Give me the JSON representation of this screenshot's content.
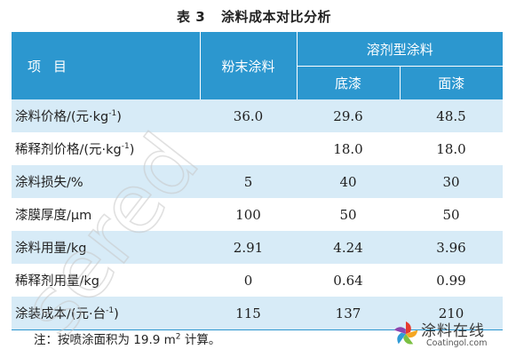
{
  "title": {
    "number": "表 3",
    "text": "涂料成本对比分析"
  },
  "table": {
    "header": {
      "item": "项目",
      "powder": "粉末涂料",
      "solvent": "溶剂型涂料",
      "primer": "底漆",
      "topcoat": "面漆"
    },
    "rows": [
      {
        "name": "涂料价格/(元·kg",
        "name_sup": "-1",
        "name_end": ")",
        "powder": "36.0",
        "primer": "29.6",
        "topcoat": "48.5"
      },
      {
        "name": "稀释剂价格/(元·kg",
        "name_sup": "-1",
        "name_end": ")",
        "powder": "",
        "primer": "18.0",
        "topcoat": "18.0"
      },
      {
        "name": "涂料损失/%",
        "name_sup": "",
        "name_end": "",
        "powder": "5",
        "primer": "40",
        "topcoat": "30"
      },
      {
        "name": "漆膜厚度/μm",
        "name_sup": "",
        "name_end": "",
        "powder": "100",
        "primer": "50",
        "topcoat": "50"
      },
      {
        "name": "涂料用量/kg",
        "name_sup": "",
        "name_end": "",
        "powder": "2.91",
        "primer": "4.24",
        "topcoat": "3.96"
      },
      {
        "name": "稀释剂用量/kg",
        "name_sup": "",
        "name_end": "",
        "powder": "0",
        "primer": "0.64",
        "topcoat": "0.99"
      },
      {
        "name": "涂装成本/(元·台",
        "name_sup": "-1",
        "name_end": ")",
        "powder": "115",
        "primer": "137",
        "topcoat": "210"
      }
    ]
  },
  "note": {
    "text": "注：按喷涂面积为 19.9 m",
    "sup": "2",
    "end": " 计算。"
  },
  "watermark": {
    "text": "sered",
    "color": "#c8c8c8"
  },
  "logo": {
    "brand": "涂料在线",
    "site": "Coatingol.com",
    "colors": [
      "#e63b2e",
      "#f5a623",
      "#7bc043",
      "#2f9bd6",
      "#8e44ad"
    ]
  },
  "colors": {
    "header": "#2c97cf",
    "stripe": "#d7ebf7"
  }
}
